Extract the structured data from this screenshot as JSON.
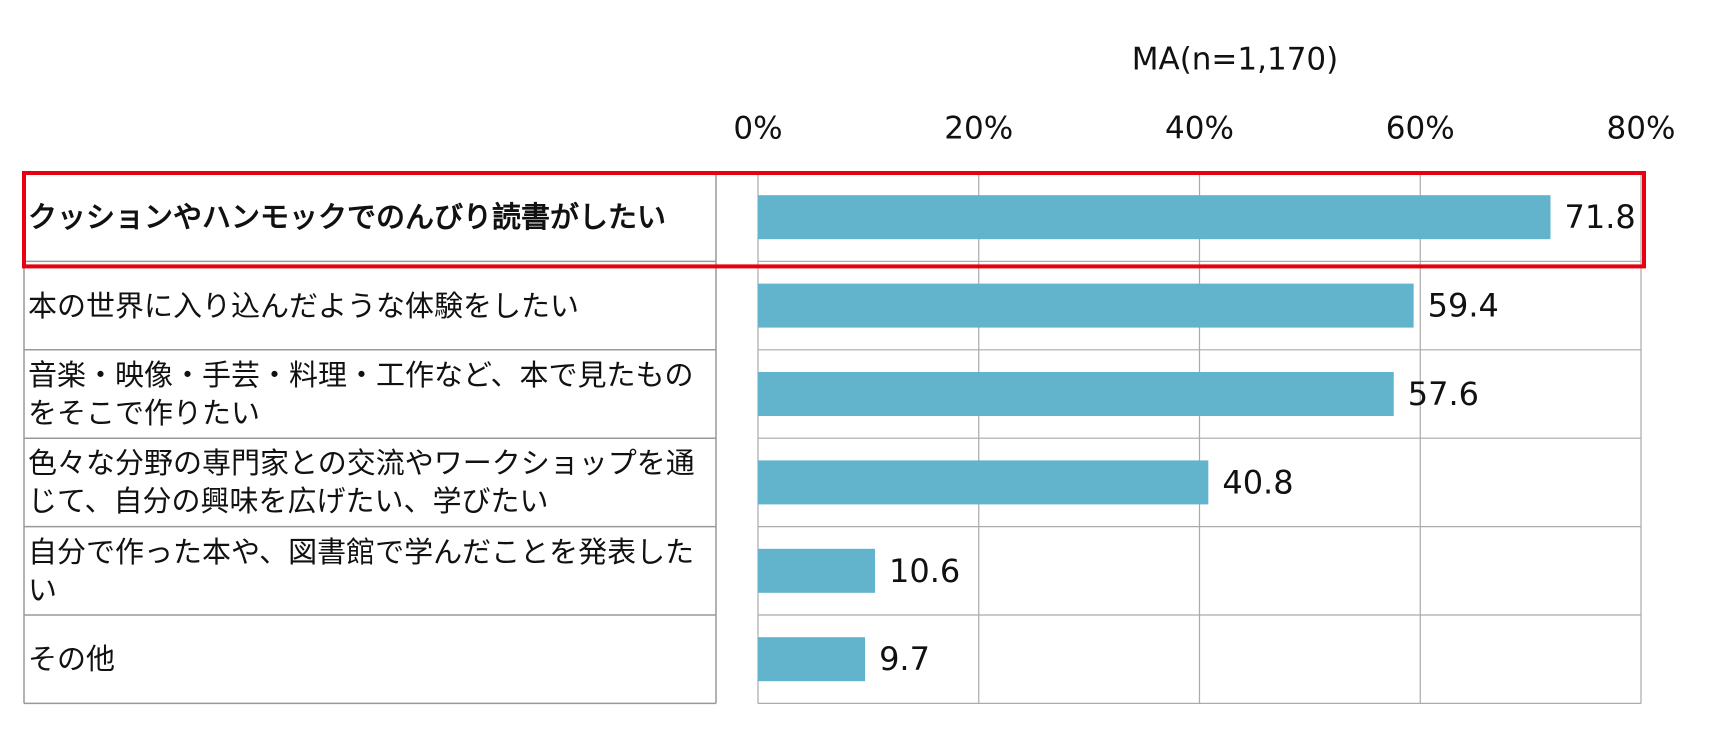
{
  "chart_data": {
    "type": "bar",
    "orientation": "horizontal",
    "subtitle": "MA(n=1,170)",
    "categories": [
      "クッションやハンモックでのんびり読書がしたい",
      "本の世界に入り込んだような体験をしたい",
      "音楽・映像・手芸・料理・工作など、本で見たものをそこで作りたい",
      "色々な分野の専門家との交流やワークショップを通じて、自分の興味を広げたい、学びたい",
      "自分で作った本や、図書館で学んだことを発表したい",
      "その他"
    ],
    "values": [
      71.8,
      59.4,
      57.6,
      40.8,
      10.6,
      9.7
    ],
    "color": "#62b3cc",
    "xlim": [
      0,
      80
    ],
    "xticks": [
      {
        "value": 0,
        "label": "0%"
      },
      {
        "value": 20,
        "label": "20%"
      },
      {
        "value": 40,
        "label": "40%"
      },
      {
        "value": 60,
        "label": "60%"
      },
      {
        "value": 80,
        "label": "80%"
      }
    ],
    "grid": true,
    "highlight": 0,
    "highlight_color": "#e60012"
  }
}
